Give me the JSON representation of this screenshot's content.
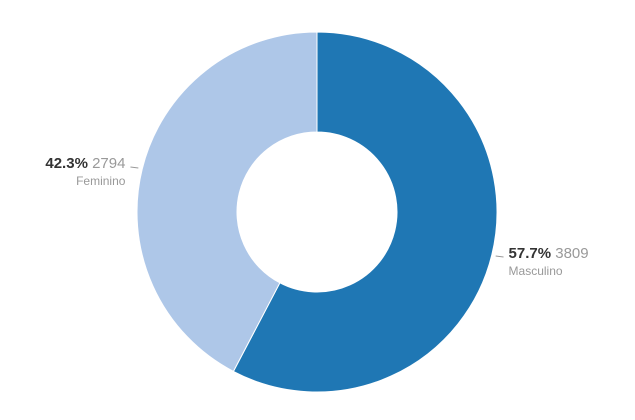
{
  "chart_data": {
    "type": "pie",
    "donut": true,
    "slices": [
      {
        "label": "Masculino",
        "value": 3809,
        "percent_label": "57.7%",
        "color": "#1f77b4"
      },
      {
        "label": "Feminino",
        "value": 2794,
        "percent_label": "42.3%",
        "color": "#aec7e8"
      }
    ],
    "start_angle": "top",
    "direction": "clockwise",
    "legend": "none"
  }
}
